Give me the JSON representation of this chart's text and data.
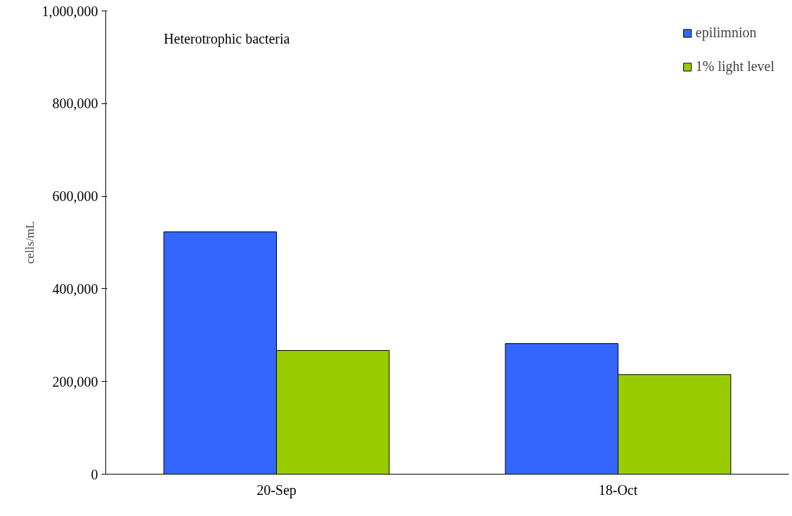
{
  "chart_data": {
    "type": "bar",
    "title": "Heterotrophic bacteria",
    "ylabel": "cells/mL",
    "categories": [
      "20-Sep",
      "18-Oct"
    ],
    "series": [
      {
        "name": "epilimnion",
        "color": "#3366ff",
        "values": [
          523000,
          282000
        ]
      },
      {
        "name": "1% light level",
        "color": "#99cc00",
        "values": [
          267000,
          215000
        ]
      }
    ],
    "ylim": [
      0,
      1000000
    ],
    "yticks": [
      0,
      {
        "value": 200000,
        "label": "200,000"
      },
      {
        "value": 400000,
        "label": "400,000"
      },
      {
        "value": 600000,
        "label": "600,000"
      },
      {
        "value": 800000,
        "label": "800,000"
      },
      {
        "value": 1000000,
        "label": "1,000,000"
      }
    ],
    "grid": false,
    "legend": "top right"
  }
}
